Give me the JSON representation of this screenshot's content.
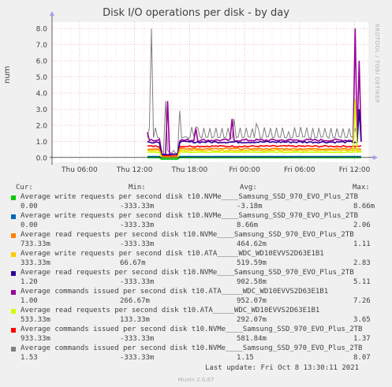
{
  "chart_data": {
    "type": "line",
    "title": "Disk I/O operations per disk - by day",
    "ylabel": "num",
    "ylim": [
      -0.3,
      8.4
    ],
    "y_ticks": [
      "0.0",
      "1.0",
      "2.0",
      "3.0",
      "4.0",
      "5.0",
      "6.0",
      "7.0",
      "8.0"
    ],
    "x_ticks": [
      "Thu 06:00",
      "Thu 12:00",
      "Thu 18:00",
      "Fri 00:00",
      "Fri 06:00",
      "Fri 12:00"
    ],
    "grid": true,
    "series": [
      {
        "name": "Average write requests per second disk t10.NVMe____Samsung_SSD_970_EVO_Plus_2TB",
        "color": "#00cc00",
        "base": 0.0
      },
      {
        "name": "Average write requests per second disk t10.NVMe____Samsung_SSD_970_EVO_Plus_2TB",
        "color": "#0066b3",
        "base": 0.05
      },
      {
        "name": "Average read requests per second disk t10.NVMe____Samsung_SSD_970_EVO_Plus_2TB",
        "color": "#ff8000",
        "base": 0.5
      },
      {
        "name": "Average write requests per second disk t10.ATA_____WDC_WD10EVVS2D63E1B1",
        "color": "#ffcc00",
        "base": 0.4
      },
      {
        "name": "Average read requests per second disk t10.NVMe____Samsung_SSD_970_EVO_Plus_2TB",
        "color": "#330099",
        "base": 1.0
      },
      {
        "name": "Average commands issued per second disk t10.ATA_____WDC_WD10EVVS2D63E1B1",
        "color": "#990099",
        "base": 1.0
      },
      {
        "name": "Average read requests per second disk t10.ATA_____WDC_WD10EVVS2D63E1B1",
        "color": "#ccff00",
        "base": 0.3
      },
      {
        "name": "Average commands issued per second disk t10.NVMe____Samsung_SSD_970_EVO_Plus_2TB",
        "color": "#ff0000",
        "base": 0.6
      },
      {
        "name": "Average commands issued per second disk t10.NVMe____Samsung_SSD_970_EVO_Plus_2TB",
        "color": "#808080",
        "base": 1.2
      }
    ]
  },
  "side_label": "RRDTOOL / TOBI OETIKER",
  "legend": {
    "head": {
      "cur": "Cur:",
      "min": "Min:",
      "avg": "Avg:",
      "max": "Max:"
    },
    "rows": [
      {
        "label": "Average write requests per second disk t10.NVMe____Samsung_SSD_970_EVO_Plus_2TB",
        "color": "#00cc00",
        "cur": "0.00",
        "min": "-333.33m",
        "avg": "-3.18m",
        "max": "8.66m"
      },
      {
        "label": "Average write requests per second disk t10.NVMe____Samsung_SSD_970_EVO_Plus_2TB",
        "color": "#0066b3",
        "cur": "0.00",
        "min": "-333.33m",
        "avg": "8.66m",
        "max": "2.06"
      },
      {
        "label": "Average read requests per second disk t10.NVMe____Samsung_SSD_970_EVO_Plus_2TB",
        "color": "#ff8000",
        "cur": "733.33m",
        "min": "-333.33m",
        "avg": "464.62m",
        "max": "1.11"
      },
      {
        "label": "Average write requests per second disk t10.ATA_____WDC_WD10EVVS2D63E1B1",
        "color": "#ffcc00",
        "cur": "333.33m",
        "min": "66.67m",
        "avg": "519.59m",
        "max": "2.83"
      },
      {
        "label": "Average read requests per second disk t10.NVMe____Samsung_SSD_970_EVO_Plus_2TB",
        "color": "#330099",
        "cur": "1.20",
        "min": "-333.33m",
        "avg": "902.58m",
        "max": "5.11"
      },
      {
        "label": "Average commands issued per second disk t10.ATA_____WDC_WD10EVVS2D63E1B1",
        "color": "#990099",
        "cur": "1.00",
        "min": "266.67m",
        "avg": "952.07m",
        "max": "7.26"
      },
      {
        "label": "Average read requests per second disk t10.ATA_____WDC_WD10EVVS2D63E1B1",
        "color": "#ccff00",
        "cur": "533.33m",
        "min": "133.33m",
        "avg": "292.07m",
        "max": "3.65"
      },
      {
        "label": "Average commands issued per second disk t10.NVMe____Samsung_SSD_970_EVO_Plus_2TB",
        "color": "#ff0000",
        "cur": "933.33m",
        "min": "-333.33m",
        "avg": "581.84m",
        "max": "1.37"
      },
      {
        "label": "Average commands issued per second disk t10.NVMe____Samsung_SSD_970_EVO_Plus_2TB",
        "color": "#808080",
        "cur": "1.53",
        "min": "-333.33m",
        "avg": "1.15",
        "max": "8.07"
      }
    ]
  },
  "last_update": "Last update: Fri Oct  8 13:30:11 2021",
  "footer": "Munin 2.0.67"
}
